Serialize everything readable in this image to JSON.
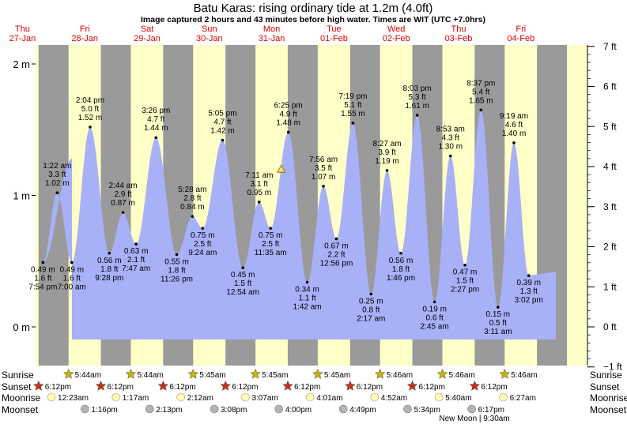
{
  "header": {
    "title": "Batu Karas: rising  ordinary tide at 1.2m (4.0ft)",
    "subtitle": "Image captured 2 hours and 43 minutes before high water. Times are WIT (UTC +7.0hrs)"
  },
  "chart_data": {
    "type": "area",
    "ylim_m": [
      -0.2,
      2.15
    ],
    "left_axis_ticks": [
      "2 m",
      "1 m",
      "0 m"
    ],
    "right_axis_ticks": [
      "7 ft",
      "6 ft",
      "5 ft",
      "4 ft",
      "3 ft",
      "2 ft",
      "1 ft",
      "0 ft",
      "−1 ft"
    ],
    "days": [
      {
        "day": "Thu",
        "date": "27-Jan"
      },
      {
        "day": "Fri",
        "date": "28-Jan"
      },
      {
        "day": "Sat",
        "date": "29-Jan"
      },
      {
        "day": "Sun",
        "date": "30-Jan"
      },
      {
        "day": "Mon",
        "date": "31-Jan"
      },
      {
        "day": "Tue",
        "date": "01-Feb"
      },
      {
        "day": "Wed",
        "date": "02-Feb"
      },
      {
        "day": "Thu",
        "date": "03-Feb"
      },
      {
        "day": "Fri",
        "date": "04-Feb"
      }
    ],
    "tide_extremes": [
      {
        "type": "low",
        "m": "0.49 m",
        "ft": "1.6 ft",
        "time": "7:54 pm",
        "h": 0.49,
        "day": 0,
        "hour": 19.9
      },
      {
        "type": "high",
        "m": "1.02 m",
        "ft": "3.3 ft",
        "time": "1:22 am",
        "h": 1.02,
        "day": 1,
        "hour": 1.37
      },
      {
        "type": "low",
        "m": "0.49 m",
        "ft": "1.6 ft",
        "time": "7:00 am",
        "h": 0.49,
        "day": 1,
        "hour": 7.0
      },
      {
        "type": "high",
        "m": "1.52 m",
        "ft": "5.0 ft",
        "time": "2:04 pm",
        "h": 1.52,
        "day": 1,
        "hour": 14.07
      },
      {
        "type": "low",
        "m": "0.56 m",
        "ft": "1.8 ft",
        "time": "9:28 pm",
        "h": 0.56,
        "day": 1,
        "hour": 21.47
      },
      {
        "type": "high",
        "m": "0.87 m",
        "ft": "2.9 ft",
        "time": "2:44 am",
        "h": 0.87,
        "day": 2,
        "hour": 2.73
      },
      {
        "type": "low",
        "m": "0.63 m",
        "ft": "2.1 ft",
        "time": "7:47 am",
        "h": 0.63,
        "day": 2,
        "hour": 7.78
      },
      {
        "type": "high",
        "m": "1.44 m",
        "ft": "4.7 ft",
        "time": "3:26 pm",
        "h": 1.44,
        "day": 2,
        "hour": 15.43
      },
      {
        "type": "low",
        "m": "0.55 m",
        "ft": "1.8 ft",
        "time": "11:26 pm",
        "h": 0.55,
        "day": 2,
        "hour": 23.43
      },
      {
        "type": "high",
        "m": "0.84 m",
        "ft": "2.8 ft",
        "time": "5:28 am",
        "h": 0.84,
        "day": 3,
        "hour": 5.47
      },
      {
        "type": "low",
        "m": "0.75 m",
        "ft": "2.5 ft",
        "time": "9:24 am",
        "h": 0.75,
        "day": 3,
        "hour": 9.4
      },
      {
        "type": "high",
        "m": "1.42 m",
        "ft": "4.7 ft",
        "time": "5:05 pm",
        "h": 1.42,
        "day": 3,
        "hour": 17.08
      },
      {
        "type": "low",
        "m": "0.45 m",
        "ft": "1.5 ft",
        "time": "12:54 am",
        "h": 0.45,
        "day": 4,
        "hour": 0.9
      },
      {
        "type": "high",
        "m": "0.95 m",
        "ft": "3.1 ft",
        "time": "7:11 am",
        "h": 0.95,
        "day": 4,
        "hour": 7.18
      },
      {
        "type": "low",
        "m": "0.75 m",
        "ft": "2.5 ft",
        "time": "11:35 am",
        "h": 0.75,
        "day": 4,
        "hour": 11.58
      },
      {
        "type": "high",
        "m": "1.48 m",
        "ft": "4.9 ft",
        "time": "6:25 pm",
        "h": 1.48,
        "day": 4,
        "hour": 18.42
      },
      {
        "type": "low",
        "m": "0.34 m",
        "ft": "1.1 ft",
        "time": "1:42 am",
        "h": 0.34,
        "day": 5,
        "hour": 1.7
      },
      {
        "type": "high",
        "m": "1.07 m",
        "ft": "3.5 ft",
        "time": "7:56 am",
        "h": 1.07,
        "day": 5,
        "hour": 7.93
      },
      {
        "type": "low",
        "m": "0.67 m",
        "ft": "2.2 ft",
        "time": "12:56 pm",
        "h": 0.67,
        "day": 5,
        "hour": 12.93
      },
      {
        "type": "high",
        "m": "1.55 m",
        "ft": "5.1 ft",
        "time": "7:19 pm",
        "h": 1.55,
        "day": 5,
        "hour": 19.32
      },
      {
        "type": "low",
        "m": "0.25 m",
        "ft": "0.8 ft",
        "time": "2:17 am",
        "h": 0.25,
        "day": 6,
        "hour": 2.28
      },
      {
        "type": "high",
        "m": "1.19 m",
        "ft": "3.9 ft",
        "time": "8:27 am",
        "h": 1.19,
        "day": 6,
        "hour": 8.45
      },
      {
        "type": "low",
        "m": "0.56 m",
        "ft": "1.8 ft",
        "time": "1:46 pm",
        "h": 0.56,
        "day": 6,
        "hour": 13.77
      },
      {
        "type": "high",
        "m": "1.61 m",
        "ft": "5.3 ft",
        "time": "8:03 pm",
        "h": 1.61,
        "day": 6,
        "hour": 20.05
      },
      {
        "type": "low",
        "m": "0.19 m",
        "ft": "0.6 ft",
        "time": "2:45 am",
        "h": 0.19,
        "day": 7,
        "hour": 2.75
      },
      {
        "type": "high",
        "m": "1.30 m",
        "ft": "4.3 ft",
        "time": "8:53 am",
        "h": 1.3,
        "day": 7,
        "hour": 8.88
      },
      {
        "type": "low",
        "m": "0.47 m",
        "ft": "1.5 ft",
        "time": "2:27 pm",
        "h": 0.47,
        "day": 7,
        "hour": 14.45
      },
      {
        "type": "high",
        "m": "1.65 m",
        "ft": "5.4 ft",
        "time": "8:37 pm",
        "h": 1.65,
        "day": 7,
        "hour": 20.62
      },
      {
        "type": "low",
        "m": "0.15 m",
        "ft": "0.5 ft",
        "time": "3:11 am",
        "h": 0.15,
        "day": 8,
        "hour": 3.18
      },
      {
        "type": "high",
        "m": "1.40 m",
        "ft": "4.6 ft",
        "time": "9:19 am",
        "h": 1.4,
        "day": 8,
        "hour": 9.32
      },
      {
        "type": "low",
        "m": "0.39 m",
        "ft": "1.3 ft",
        "time": "3:02 pm",
        "h": 0.39,
        "day": 8,
        "hour": 15.03
      }
    ],
    "current_marker": {
      "h": 1.2,
      "day": 4,
      "hour": 15.7
    },
    "row_labels": {
      "sunrise": "Sunrise",
      "sunset": "Sunset",
      "moonrise": "Moonrise",
      "moonset": "Moonset"
    },
    "sunrise": [
      "5:44am",
      "5:44am",
      "5:45am",
      "5:45am",
      "5:45am",
      "5:46am",
      "5:46am",
      "5:46am"
    ],
    "sunset": [
      "6:12pm",
      "6:12pm",
      "6:12pm",
      "6:12pm",
      "6:12pm",
      "6:12pm",
      "6:12pm",
      "6:12pm"
    ],
    "moonrise": [
      "12:23am",
      "1:17am",
      "2:12am",
      "3:07am",
      "4:01am",
      "4:52am",
      "5:40am",
      "6:27am"
    ],
    "moonset": [
      "1:16pm",
      "2:13pm",
      "3:08pm",
      "4:00pm",
      "4:49pm",
      "5:34pm",
      "6:17pm"
    ],
    "moon_phase": "New Moon | 9:30am",
    "colors": {
      "day": "#ffffc8",
      "night": "#9a9a9a",
      "tide": "#a8b0f8",
      "day_header": "#e00000",
      "sunrise_star": "#c8b400",
      "sunset_star": "#c83018",
      "moonrise": "#ffffb0",
      "moonset": "#b4b4b4"
    }
  }
}
